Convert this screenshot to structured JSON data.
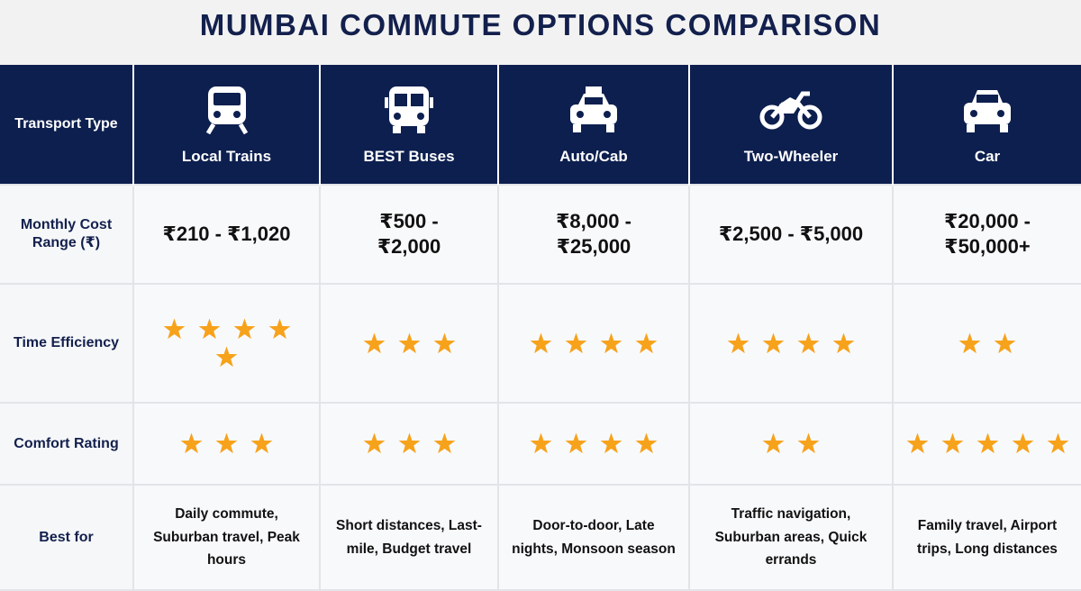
{
  "title": "MUMBAI COMMUTE OPTIONS COMPARISON",
  "table": {
    "header": [
      "Transport Type",
      "Local Trains",
      "BEST Buses",
      "Auto/Cab",
      "Two-Wheeler",
      "Car"
    ],
    "rows": [
      {
        "label": "Monthly Cost Range (₹)",
        "cells": [
          "₹210 - ₹1,020",
          "₹500 - ₹2,000",
          "₹8,000 - ₹25,000",
          "₹2,500 - ₹5,000",
          "₹20,000 - ₹50,000+"
        ]
      },
      {
        "label": "Time Efficiency",
        "ratings": [
          5,
          3,
          4,
          4,
          2
        ]
      },
      {
        "label": "Comfort Rating",
        "ratings": [
          3,
          3,
          4,
          2,
          5
        ]
      },
      {
        "label": "Best for",
        "cells": [
          "Daily commute, Suburban travel, Peak hours",
          "Short distances, Last-mile, Budget travel",
          "Door-to-door, Late nights, Monsoon season",
          "Traffic navigation, Suburban areas, Quick errands",
          "Family travel, Airport trips, Long distances"
        ]
      }
    ]
  }
}
